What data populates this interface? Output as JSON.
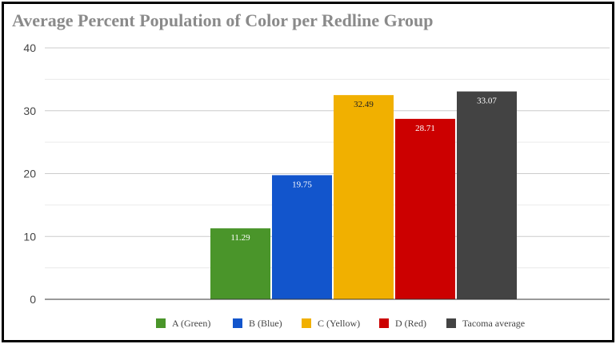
{
  "chart_data": {
    "type": "bar",
    "title": "Average Percent Population of Color per Redline Group",
    "xlabel": "",
    "ylabel": "",
    "ylim": [
      0,
      40
    ],
    "yticks": [
      0,
      10,
      20,
      30,
      40
    ],
    "grid": true,
    "legend_position": "bottom",
    "series": [
      {
        "name": "A (Green)",
        "value": 11.29,
        "value_label": "11.29",
        "color": "#4a952a",
        "label_color": "#ffffff"
      },
      {
        "name": "B (Blue)",
        "value": 19.75,
        "value_label": "19.75",
        "color": "#1255cc",
        "label_color": "#ffffff"
      },
      {
        "name": "C (Yellow)",
        "value": 32.49,
        "value_label": "32.49",
        "color": "#f1b000",
        "label_color": "#222222"
      },
      {
        "name": "D (Red)",
        "value": 28.71,
        "value_label": "28.71",
        "color": "#cc0000",
        "label_color": "#ffffff"
      },
      {
        "name": "Tacoma average",
        "value": 33.07,
        "value_label": "33.07",
        "color": "#434343",
        "label_color": "#ffffff"
      }
    ]
  }
}
